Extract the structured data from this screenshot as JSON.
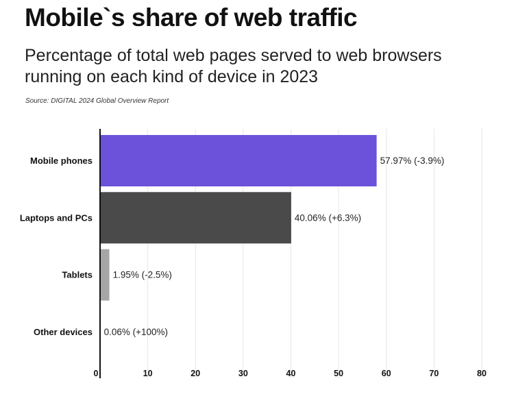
{
  "header": {
    "title": "Mobile`s share of web traffic",
    "subtitle": "Percentage of total web pages served to web browsers running on each kind of device in 2023",
    "source": "Source: DIGITAL 2024 Global Overview Report"
  },
  "chart_data": {
    "type": "bar",
    "orientation": "horizontal",
    "title": "Mobile`s share of web traffic",
    "subtitle": "Percentage of total web pages served to web browsers running on each kind of device in 2023",
    "categories": [
      "Mobile phones",
      "Laptops and PCs",
      "Tablets",
      "Other devices"
    ],
    "values": [
      57.97,
      40.06,
      1.95,
      0.06
    ],
    "value_labels": [
      "57.97% (-3.9%)",
      "40.06% (+6.3%)",
      "1.95% (-2.5%)",
      "0.06% (+100%)"
    ],
    "colors": [
      "#6c52db",
      "#4a4a4a",
      "#a6a6a6",
      "#d9d9d9"
    ],
    "xlim": [
      0,
      80
    ],
    "xticks": [
      0,
      10,
      20,
      30,
      40,
      50,
      60,
      70,
      80
    ],
    "grid": true,
    "legend": "none"
  }
}
